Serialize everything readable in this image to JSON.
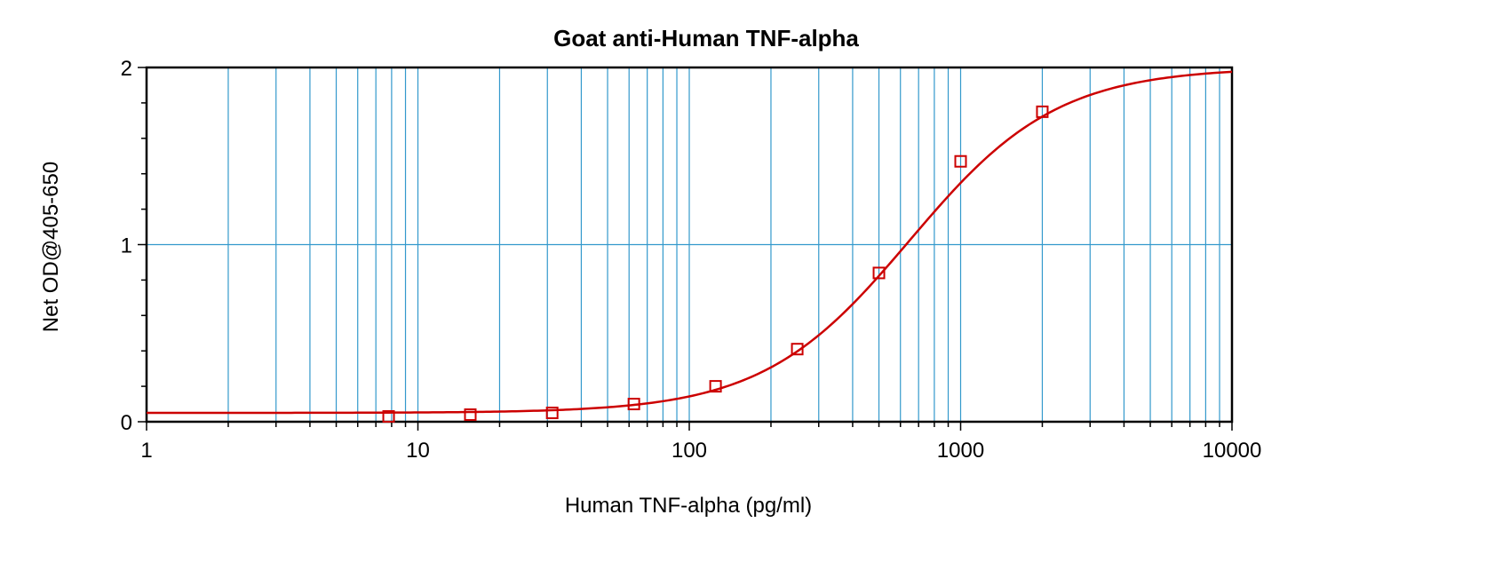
{
  "chart_data": {
    "type": "scatter",
    "title": "Goat anti-Human TNF-alpha",
    "xlabel": "Human TNF-alpha (pg/ml)",
    "ylabel": "Net OD@405-650",
    "xscale": "log",
    "xlim": [
      1,
      10000
    ],
    "ylim": [
      0,
      2
    ],
    "x_tick_labels": [
      "1",
      "10",
      "100",
      "1000",
      "10000"
    ],
    "y_tick_labels": [
      "0",
      "1",
      "2"
    ],
    "grid": true,
    "series": [
      {
        "marker": "open-square",
        "points": [
          {
            "x": 7.8,
            "y": 0.03
          },
          {
            "x": 15.6,
            "y": 0.04
          },
          {
            "x": 31.25,
            "y": 0.05
          },
          {
            "x": 62.5,
            "y": 0.1
          },
          {
            "x": 125,
            "y": 0.2
          },
          {
            "x": 250,
            "y": 0.41
          },
          {
            "x": 500,
            "y": 0.84
          },
          {
            "x": 1000,
            "y": 1.47
          },
          {
            "x": 2000,
            "y": 1.75
          }
        ]
      }
    ],
    "fit_curve": {
      "model": "4PL",
      "bottom": 0.05,
      "top": 2.0,
      "ec50": 650,
      "hill": 1.6
    },
    "colors": {
      "grid": "#3399cc",
      "data": "#cc0000",
      "axes": "#000000"
    }
  }
}
